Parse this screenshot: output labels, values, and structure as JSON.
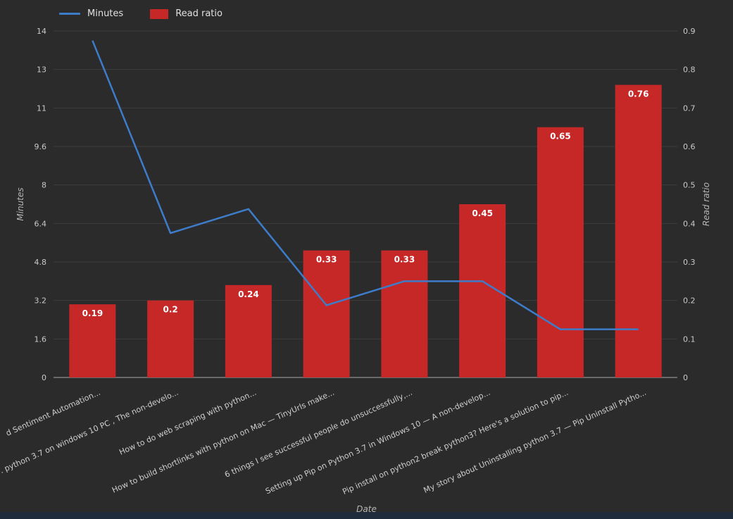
{
  "window": {
    "background": "#2b2b2b",
    "bottom_bar_color": "#1e2c3c"
  },
  "chart_data": {
    "type": "combo",
    "title": "",
    "xlabel": "Date",
    "legend_position": "top-left",
    "grid": true,
    "categories": [
      "d Sentiment Automation...",
      ". python 3.7 on windows 10 PC , The non-develo...",
      "How to do web scraping with python...",
      "How to build shortlinks with python on Mac — TinyUrls make...",
      "6 things I see successful people do unsuccessfully,...",
      "Setting up Pip on Python 3.7 in Windows 10 — A non-develop...",
      "Pip install on python2 break python3? Here's a solution to pip...",
      "My story about Uninstalling python 3.7 — Pip Uninstall Pytho..."
    ],
    "series": [
      {
        "name": "Minutes",
        "type": "line",
        "axis": "left",
        "color": "#3d7cc9",
        "values": [
          14,
          6,
          7,
          3,
          4,
          4,
          2,
          2
        ]
      },
      {
        "name": "Read ratio",
        "type": "bar",
        "axis": "right",
        "color": "#c62828",
        "values": [
          0.19,
          0.2,
          0.24,
          0.33,
          0.33,
          0.45,
          0.65,
          0.76
        ],
        "value_labels": [
          "0.19",
          "0.2",
          "0.24",
          "0.33",
          "0.33",
          "0.45",
          "0.65",
          "0.76"
        ]
      }
    ],
    "left_axis": {
      "label": "Minutes",
      "min": 0,
      "max": 14.4,
      "ticks": [
        {
          "v": 14.4,
          "label": "14"
        },
        {
          "v": 12.8,
          "label": "13"
        },
        {
          "v": 11.2,
          "label": "11"
        },
        {
          "v": 9.6,
          "label": "9.6"
        },
        {
          "v": 8,
          "label": "8"
        },
        {
          "v": 6.4,
          "label": "6.4"
        },
        {
          "v": 4.8,
          "label": "4.8"
        },
        {
          "v": 3.2,
          "label": "3.2"
        },
        {
          "v": 1.6,
          "label": "1.6"
        },
        {
          "v": 0,
          "label": "0"
        }
      ]
    },
    "right_axis": {
      "label": "Read ratio",
      "min": 0,
      "max": 0.9,
      "ticks": [
        {
          "v": 0.9,
          "label": "0.9"
        },
        {
          "v": 0.8,
          "label": "0.8"
        },
        {
          "v": 0.7,
          "label": "0.7"
        },
        {
          "v": 0.6,
          "label": "0.6"
        },
        {
          "v": 0.5,
          "label": "0.5"
        },
        {
          "v": 0.4,
          "label": "0.4"
        },
        {
          "v": 0.3,
          "label": "0.3"
        },
        {
          "v": 0.2,
          "label": "0.2"
        },
        {
          "v": 0.1,
          "label": "0.1"
        },
        {
          "v": 0,
          "label": "0"
        }
      ]
    },
    "colors": {
      "grid": "#3c3c3c",
      "axis_line": "#a8a8a8",
      "tick_label": "#c9c9c9",
      "category_label": "#cfcfcf",
      "bar_value_label": "#ffffff",
      "axis_title": "#b5b5b5",
      "legend_text": "#e0e0e0"
    }
  }
}
